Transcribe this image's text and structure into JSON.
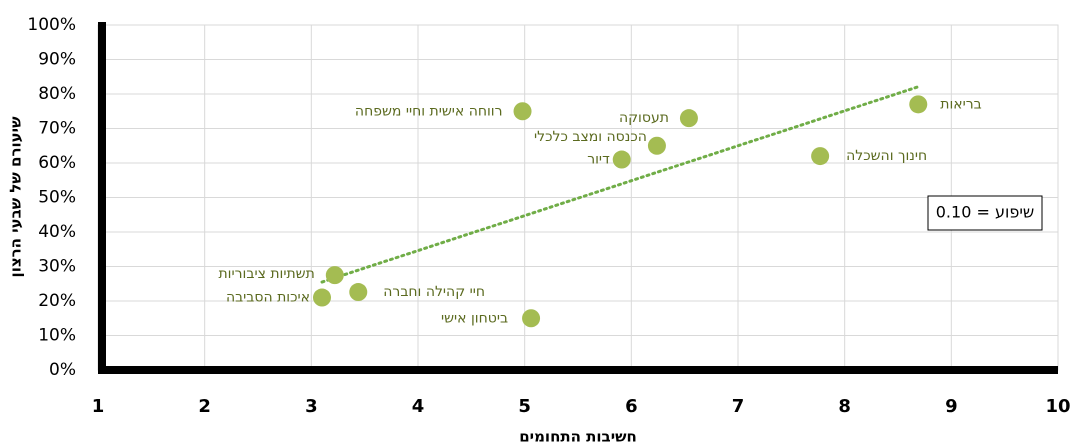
{
  "chart_data": {
    "type": "scatter",
    "x_label": "חשיבות התחומים",
    "y_label": "שיעורם של שבעי הרצון",
    "annotation": "שיפוע = 0.10",
    "color": "#a4bc52",
    "trend_color": "#70ad47",
    "grid": true,
    "xlim": [
      1,
      10
    ],
    "xticks": [
      1,
      2,
      3,
      4,
      5,
      6,
      7,
      8,
      9,
      10
    ],
    "ylim": [
      0,
      100
    ],
    "yticks": [
      {
        "value": 0,
        "label": "0%"
      },
      {
        "value": 10,
        "label": "10%"
      },
      {
        "value": 20,
        "label": "20%"
      },
      {
        "value": 30,
        "label": "30%"
      },
      {
        "value": 40,
        "label": "40%"
      },
      {
        "value": 50,
        "label": "50%"
      },
      {
        "value": 60,
        "label": "60%"
      },
      {
        "value": 70,
        "label": "70%"
      },
      {
        "value": 80,
        "label": "80%"
      },
      {
        "value": 90,
        "label": "90%"
      },
      {
        "value": 100,
        "label": "100%"
      }
    ],
    "labels": [
      "בריאות",
      "חינוך והשכלה",
      "תעסוקה",
      "הכנסה ומצב כלכלי",
      "דיור",
      "רווחה אישית וחיי משפחה",
      "תשתיות ציבוריות",
      "איכות הסביבה",
      "חיי קהילה וחברה",
      "ביטחון אישי"
    ],
    "x": [
      8.69,
      7.77,
      6.54,
      6.24,
      5.91,
      4.98,
      3.22,
      3.1,
      3.44,
      5.06
    ],
    "y": [
      77,
      62,
      73,
      65,
      61,
      75,
      27.5,
      21,
      22.6,
      15
    ],
    "trendline": {
      "x": [
        3.1,
        8.68
      ],
      "y": [
        25.5,
        82
      ]
    }
  }
}
